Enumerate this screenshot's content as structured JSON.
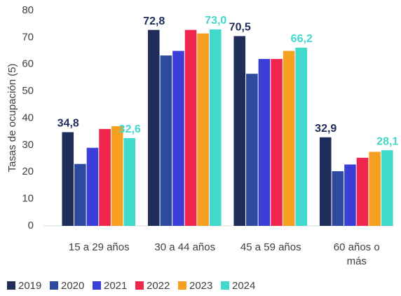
{
  "chart_data": {
    "type": "bar",
    "y_label": "Tasas de ocupación (5)",
    "categories": [
      "15 a 29 años",
      "30 a 44 años",
      "45 a 59 años",
      "60 años o más"
    ],
    "series": [
      {
        "name": "2019",
        "color": "#1f2d5a",
        "values": [
          34.8,
          72.8,
          70.5,
          32.9
        ],
        "value_labels": [
          "34,8",
          "72,8",
          "70,5",
          "32,9"
        ]
      },
      {
        "name": "2020",
        "color": "#2e4a9e",
        "values": [
          23,
          63.3,
          56.5,
          20.3
        ]
      },
      {
        "name": "2021",
        "color": "#3b3fd8",
        "values": [
          29,
          65,
          62,
          22.8
        ]
      },
      {
        "name": "2022",
        "color": "#f0264f",
        "values": [
          36,
          72.8,
          62,
          25.3
        ]
      },
      {
        "name": "2023",
        "color": "#f5a020",
        "values": [
          37,
          71.5,
          65,
          27.5
        ]
      },
      {
        "name": "2024",
        "color": "#40d9cc",
        "values": [
          32.6,
          73.0,
          66.2,
          28.1
        ],
        "value_labels": [
          "32,6",
          "73,0",
          "66,2",
          "28,1"
        ]
      }
    ],
    "ylim": [
      0,
      80
    ],
    "yticks": [
      0,
      10,
      20,
      30,
      40,
      50,
      60,
      70,
      80
    ],
    "grid": false,
    "legend": "bottom"
  }
}
